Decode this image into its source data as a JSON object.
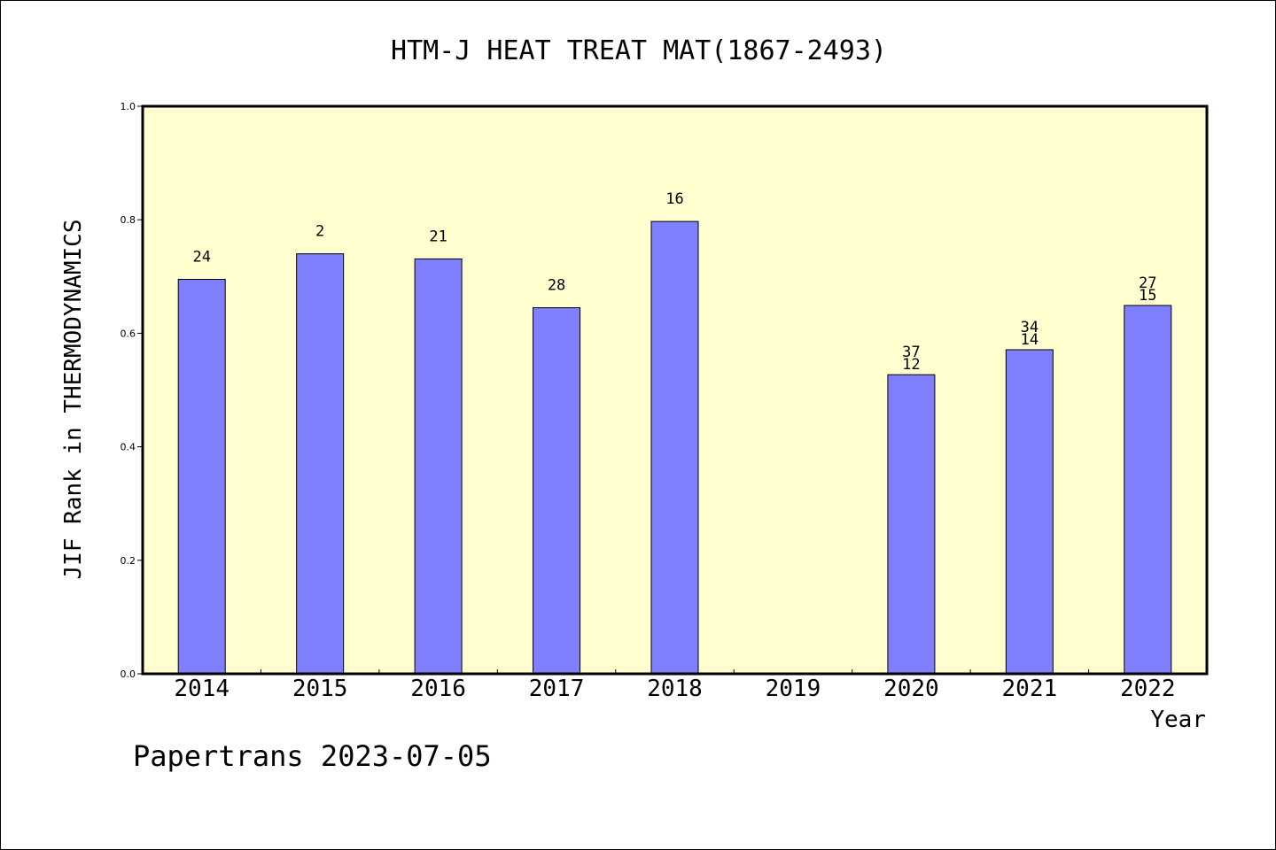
{
  "footer": {
    "text": "Papertrans 2023-07-05"
  },
  "chart_data": {
    "type": "bar",
    "title": "HTM-J HEAT TREAT MAT(1867-2493)",
    "xlabel": "Year",
    "ylabel": "JIF Rank in THERMODYNAMICS",
    "ylim": [
      0,
      1.0
    ],
    "yticks": [
      "0.0",
      "0.2",
      "0.4",
      "0.6",
      "0.8",
      "1.0"
    ],
    "categories": [
      "2014",
      "2015",
      "2016",
      "2017",
      "2018",
      "2019",
      "2020",
      "2021",
      "2022"
    ],
    "values": [
      0.695,
      0.74,
      0.731,
      0.645,
      0.797,
      null,
      0.527,
      0.571,
      0.649
    ],
    "bar_labels": [
      [
        "24"
      ],
      [
        "2"
      ],
      [
        "21"
      ],
      [
        "28"
      ],
      [
        "16"
      ],
      [],
      [
        "37",
        "12"
      ],
      [
        "34",
        "14"
      ],
      [
        "27",
        "15"
      ]
    ],
    "grid": false,
    "colors": {
      "plot_background": "#FFFFD0",
      "bar_fill": "#8080FF",
      "bar_stroke": "#000000",
      "axis": "#000000"
    }
  }
}
